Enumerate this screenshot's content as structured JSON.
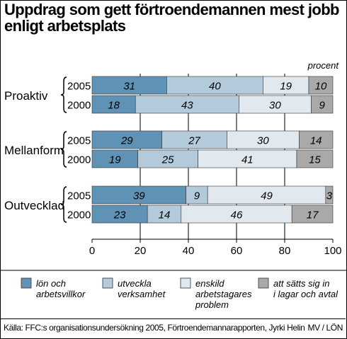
{
  "title": "Uppdrag som gett förtroendemannen mest jobb enligt arbetsplats",
  "unit": "procent",
  "source": "Källa: FFC:s organisationsundersökning 2005, Förtroendemannarapporten, Jyrki Helin",
  "credit": "MV / LÖN",
  "chart_data": {
    "type": "bar",
    "orientation": "horizontal",
    "stacked": true,
    "title": "Uppdrag som gett förtroendemannen mest jobb enligt arbetsplats",
    "ylabel": "procent",
    "xlim": [
      0,
      100
    ],
    "xticks": [
      "0",
      "20",
      "40",
      "60",
      "80",
      "100"
    ],
    "grid": true,
    "legend_position": "bottom",
    "groups": [
      {
        "name": "Proaktiv",
        "bars": [
          {
            "year": "2005",
            "values": [
              31,
              40,
              19,
              10
            ]
          },
          {
            "year": "2000",
            "values": [
              18,
              43,
              30,
              9
            ]
          }
        ]
      },
      {
        "name": "Mellanform",
        "bars": [
          {
            "year": "2005",
            "values": [
              29,
              27,
              30,
              14
            ]
          },
          {
            "year": "2000",
            "values": [
              19,
              25,
              41,
              15
            ]
          }
        ]
      },
      {
        "name": "Outvecklad",
        "bars": [
          {
            "year": "2005",
            "values": [
              39,
              9,
              49,
              3
            ]
          },
          {
            "year": "2000",
            "values": [
              23,
              14,
              46,
              17
            ]
          }
        ]
      }
    ],
    "series": [
      {
        "name": "lön och arbetsvillkor",
        "label_lines": [
          "lön och",
          "arbetsvillkor"
        ],
        "color": "#5f92b5"
      },
      {
        "name": "utveckla verksamhet",
        "label_lines": [
          "utveckla",
          "verksamhet"
        ],
        "color": "#b3cadb"
      },
      {
        "name": "enskild arbetstagares problem",
        "label_lines": [
          "enskild",
          "arbetstagares",
          "problem"
        ],
        "color": "#e1e9ef"
      },
      {
        "name": "att sätts sig in i lagar och avtal",
        "label_lines": [
          "att sätts sig in",
          "i lagar och avtal"
        ],
        "color": "#a9a9a9"
      }
    ]
  }
}
